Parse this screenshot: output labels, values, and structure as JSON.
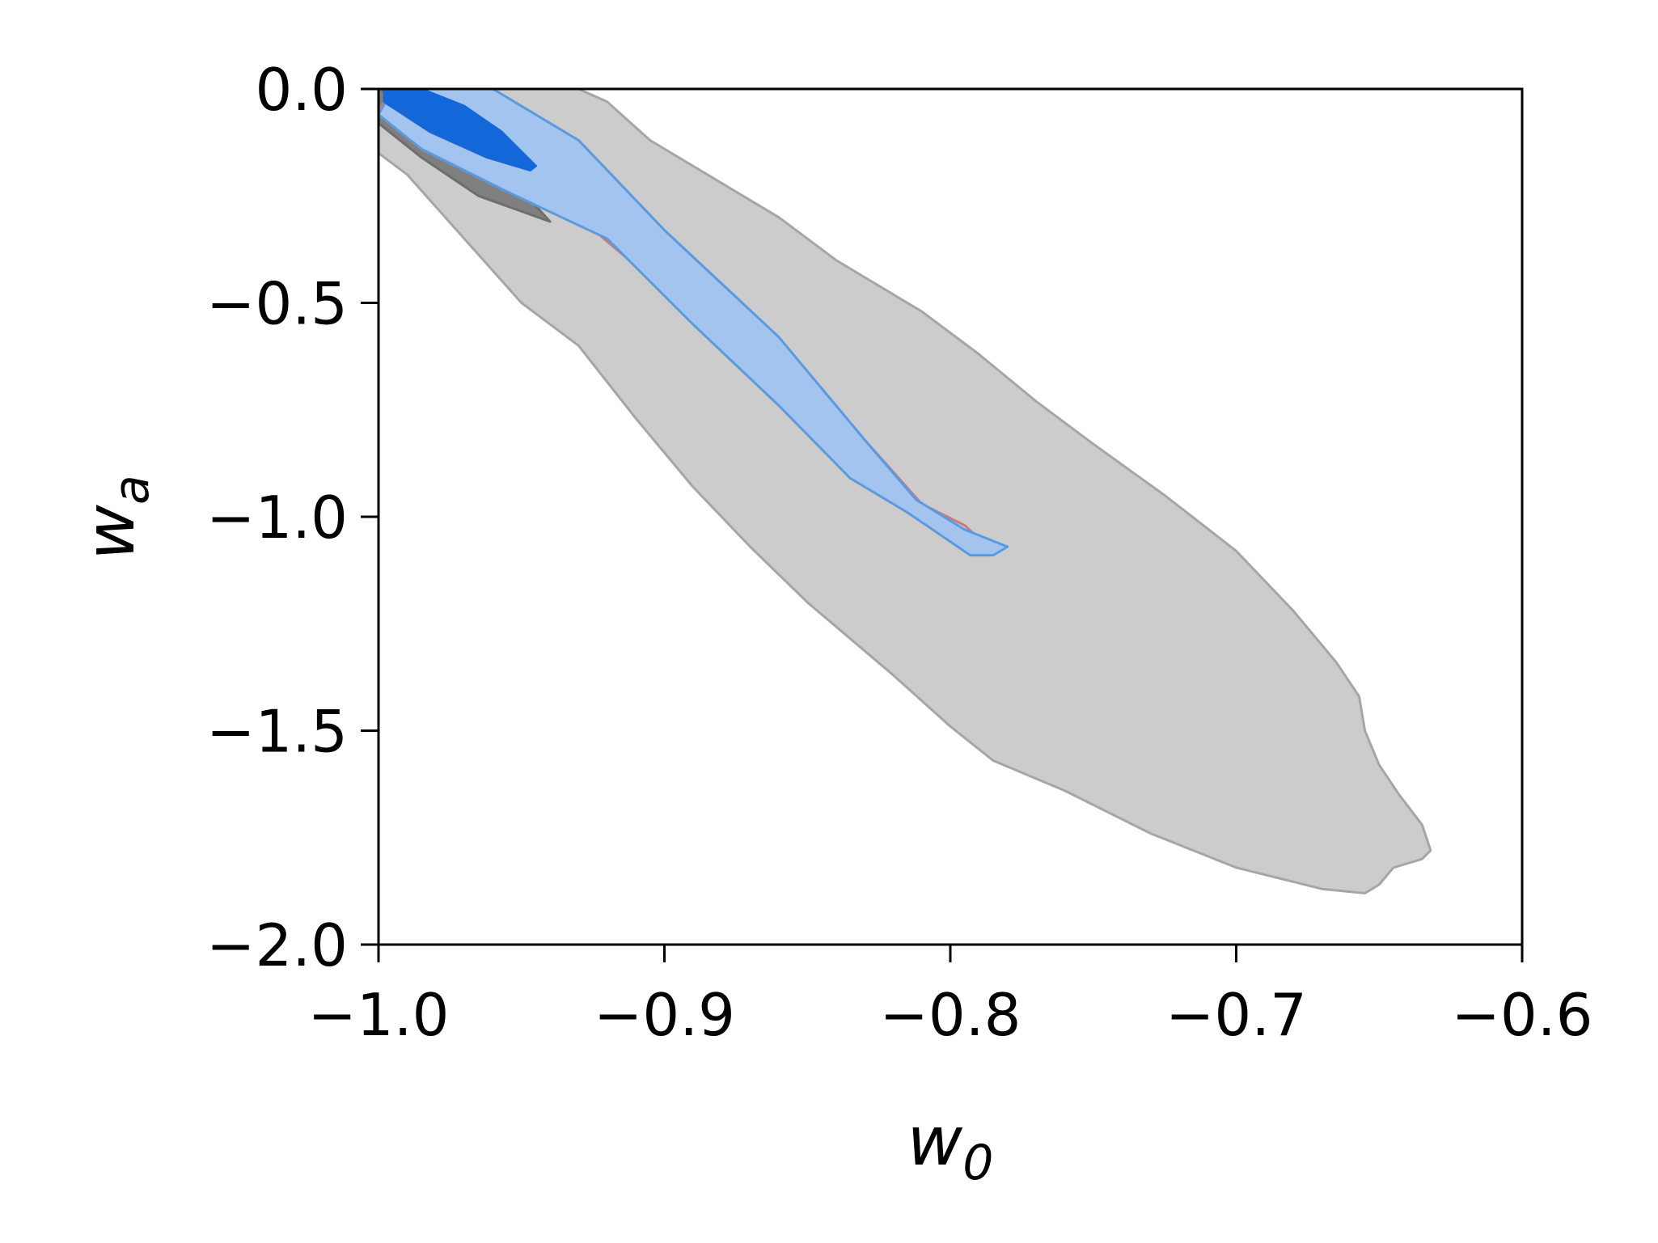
{
  "chart_data": {
    "type": "area",
    "title": "",
    "xlabel": {
      "main": "w",
      "sub": "0"
    },
    "ylabel": {
      "main": "w",
      "sub": "a"
    },
    "xlim": [
      -1.0,
      -0.6
    ],
    "ylim": [
      -2.0,
      0.0
    ],
    "x_ticks": [
      -1.0,
      -0.9,
      -0.8,
      -0.7,
      -0.6
    ],
    "y_ticks": [
      0.0,
      -0.5,
      -1.0,
      -1.5,
      -2.0
    ],
    "x_tick_labels": [
      "−1.0",
      "−0.9",
      "−0.8",
      "−0.7",
      "−0.6"
    ],
    "y_tick_labels": [
      "0.0",
      "−0.5",
      "−1.0",
      "−1.5",
      "−2.0"
    ],
    "grid": false,
    "legend": "none",
    "series": [
      {
        "role": "outer-contour-light",
        "color": "#cccccc",
        "stroke": "#a6a6a6",
        "points": [
          [
            -1.0,
            0.0
          ],
          [
            -0.93,
            0.0
          ],
          [
            -0.92,
            -0.03
          ],
          [
            -0.905,
            -0.12
          ],
          [
            -0.885,
            -0.2
          ],
          [
            -0.86,
            -0.3
          ],
          [
            -0.84,
            -0.4
          ],
          [
            -0.81,
            -0.52
          ],
          [
            -0.79,
            -0.62
          ],
          [
            -0.77,
            -0.73
          ],
          [
            -0.75,
            -0.83
          ],
          [
            -0.725,
            -0.95
          ],
          [
            -0.7,
            -1.08
          ],
          [
            -0.68,
            -1.22
          ],
          [
            -0.665,
            -1.34
          ],
          [
            -0.657,
            -1.42
          ],
          [
            -0.655,
            -1.5
          ],
          [
            -0.65,
            -1.58
          ],
          [
            -0.643,
            -1.65
          ],
          [
            -0.635,
            -1.72
          ],
          [
            -0.632,
            -1.78
          ],
          [
            -0.635,
            -1.8
          ],
          [
            -0.645,
            -1.82
          ],
          [
            -0.65,
            -1.86
          ],
          [
            -0.655,
            -1.88
          ],
          [
            -0.67,
            -1.87
          ],
          [
            -0.7,
            -1.82
          ],
          [
            -0.73,
            -1.74
          ],
          [
            -0.76,
            -1.64
          ],
          [
            -0.785,
            -1.57
          ],
          [
            -0.8,
            -1.49
          ],
          [
            -0.82,
            -1.37
          ],
          [
            -0.85,
            -1.2
          ],
          [
            -0.87,
            -1.07
          ],
          [
            -0.89,
            -0.93
          ],
          [
            -0.91,
            -0.77
          ],
          [
            -0.93,
            -0.6
          ],
          [
            -0.95,
            -0.5
          ],
          [
            -0.97,
            -0.35
          ],
          [
            -0.99,
            -0.2
          ],
          [
            -1.0,
            -0.15
          ]
        ]
      },
      {
        "role": "inner-contour-dark",
        "color": "#7f7f7f",
        "stroke": "#6e6e6e",
        "points": [
          [
            -1.0,
            0.0
          ],
          [
            -0.985,
            -0.04
          ],
          [
            -0.97,
            -0.11
          ],
          [
            -0.955,
            -0.2
          ],
          [
            -0.94,
            -0.31
          ],
          [
            -0.965,
            -0.25
          ],
          [
            -0.985,
            -0.16
          ],
          [
            -1.0,
            -0.08
          ]
        ]
      },
      {
        "role": "outer-contour-red",
        "color": "none",
        "stroke": "#c97b7b",
        "points": [
          [
            -0.995,
            0.0
          ],
          [
            -0.96,
            0.0
          ],
          [
            -0.93,
            -0.12
          ],
          [
            -0.9,
            -0.33
          ],
          [
            -0.86,
            -0.58
          ],
          [
            -0.83,
            -0.82
          ],
          [
            -0.81,
            -0.97
          ],
          [
            -0.795,
            -1.02
          ],
          [
            -0.79,
            -1.05
          ],
          [
            -0.8,
            -1.03
          ],
          [
            -0.815,
            -0.98
          ],
          [
            -0.84,
            -0.83
          ],
          [
            -0.87,
            -0.66
          ],
          [
            -0.9,
            -0.47
          ],
          [
            -0.93,
            -0.3
          ],
          [
            -0.96,
            -0.22
          ],
          [
            -0.985,
            -0.12
          ],
          [
            -1.0,
            -0.05
          ]
        ]
      },
      {
        "role": "outer-contour-blue",
        "color": "#a3c4ee",
        "stroke": "#5a9be0",
        "points": [
          [
            -0.995,
            0.0
          ],
          [
            -0.96,
            0.0
          ],
          [
            -0.93,
            -0.12
          ],
          [
            -0.9,
            -0.33
          ],
          [
            -0.86,
            -0.58
          ],
          [
            -0.83,
            -0.82
          ],
          [
            -0.812,
            -0.96
          ],
          [
            -0.795,
            -1.03
          ],
          [
            -0.78,
            -1.07
          ],
          [
            -0.785,
            -1.09
          ],
          [
            -0.793,
            -1.09
          ],
          [
            -0.815,
            -0.99
          ],
          [
            -0.835,
            -0.91
          ],
          [
            -0.86,
            -0.74
          ],
          [
            -0.89,
            -0.55
          ],
          [
            -0.92,
            -0.35
          ],
          [
            -0.955,
            -0.24
          ],
          [
            -0.985,
            -0.14
          ],
          [
            -1.0,
            -0.06
          ]
        ]
      },
      {
        "role": "inner-contour-blue",
        "color": "#1467d8",
        "stroke": "#1467d8",
        "points": [
          [
            -0.998,
            -0.005
          ],
          [
            -0.985,
            0.0
          ],
          [
            -0.97,
            -0.04
          ],
          [
            -0.957,
            -0.1
          ],
          [
            -0.945,
            -0.18
          ],
          [
            -0.947,
            -0.19
          ],
          [
            -0.962,
            -0.16
          ],
          [
            -0.982,
            -0.1
          ],
          [
            -0.998,
            -0.03
          ]
        ]
      }
    ]
  }
}
